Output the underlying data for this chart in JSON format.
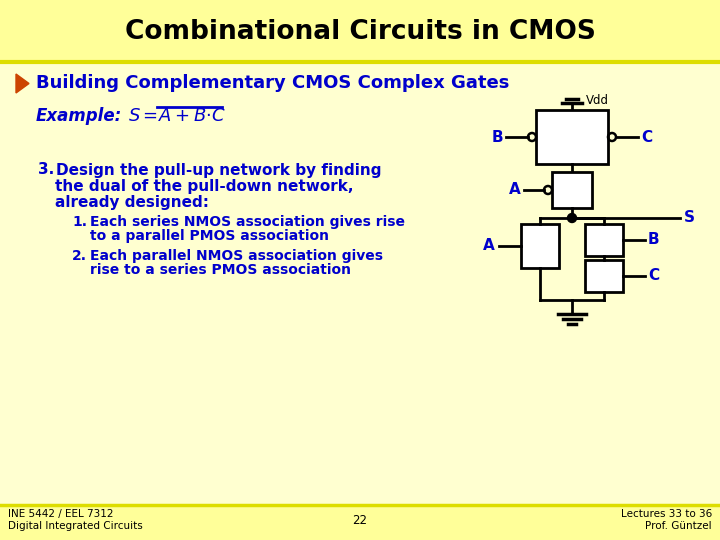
{
  "title": "Combinational Circuits in CMOS",
  "title_bg": "#FFFF99",
  "slide_bg": "#FFFFD0",
  "header_color": "#0000CC",
  "title_color": "#000000",
  "bullet_color": "#CC4400",
  "text_color": "#0000CC",
  "circuit_color": "#000000",
  "footer_left": "INE 5442 / EEL 7312\nDigital Integrated Circuits",
  "footer_center": "22",
  "footer_right": "Lectures 33 to 36\nProf. Güntzel",
  "section_title": "Building Complementary CMOS Complex Gates",
  "example_label": "Example:",
  "body_lines": [
    [
      "3.",
      "Design the pull-up network by finding",
      38,
      170,
      11,
      true
    ],
    [
      "",
      "the dual of the pull-down network,",
      55,
      186,
      11,
      false
    ],
    [
      "",
      "already designed:",
      55,
      202,
      11,
      true
    ],
    [
      "1.",
      "Each series NMOS association gives rise",
      72,
      222,
      10,
      false
    ],
    [
      "",
      "to a parallel PMOS association",
      90,
      236,
      10,
      false
    ],
    [
      "2.",
      "Each parallel NMOS association gives",
      72,
      256,
      10,
      false
    ],
    [
      "",
      "rise to a series PMOS association",
      90,
      270,
      10,
      false
    ]
  ]
}
